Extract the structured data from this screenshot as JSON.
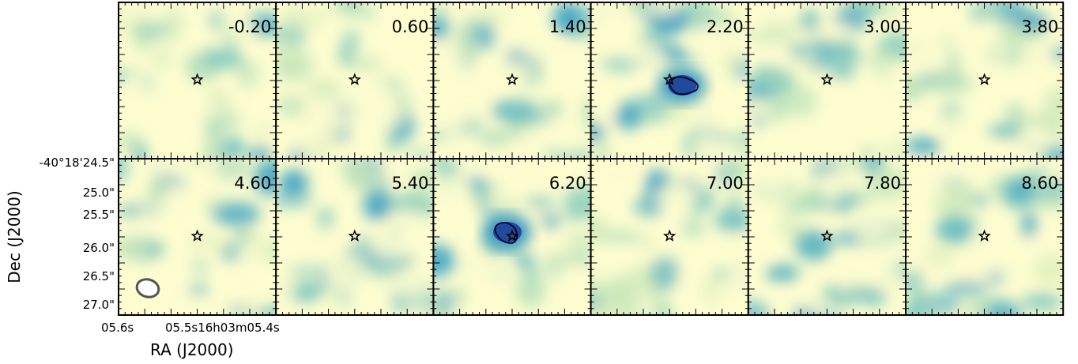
{
  "chart_data": {
    "type": "heatmap",
    "title": "",
    "xlabel": "RA (J2000)",
    "ylabel": "Dec (J2000)",
    "panel_labels": [
      "-0.20",
      "0.60",
      "1.40",
      "2.20",
      "3.00",
      "3.80",
      "4.60",
      "5.40",
      "6.20",
      "7.00",
      "7.80",
      "8.60"
    ],
    "grid": {
      "rows": 2,
      "cols": 6
    },
    "y_tick_labels": [
      "-40°18'24.5\"",
      "25.0\"",
      "25.5\"",
      "26.0\"",
      "26.5\"",
      "27.0\""
    ],
    "x_tick_labels": [
      "05.6s",
      "05.5s16h03m05.4s"
    ],
    "colormap": [
      "#fdfdd0",
      "#e3f1bd",
      "#b7e0ba",
      "#7fc8c0",
      "#45a6c6",
      "#1f80b8",
      "#234a9b",
      "#081d58"
    ],
    "emission_panels": [
      {
        "panel": "2.20",
        "peak": "strong",
        "offset": "slightly east of star"
      },
      {
        "panel": "6.20",
        "peak": "strong",
        "offset": "slightly west of star"
      }
    ],
    "markers": {
      "symbol": "star",
      "every_panel": true
    },
    "beam": {
      "panel": "4.60",
      "placement": "bottom-left",
      "shape": "ellipse"
    },
    "contour_color": "#000033"
  }
}
